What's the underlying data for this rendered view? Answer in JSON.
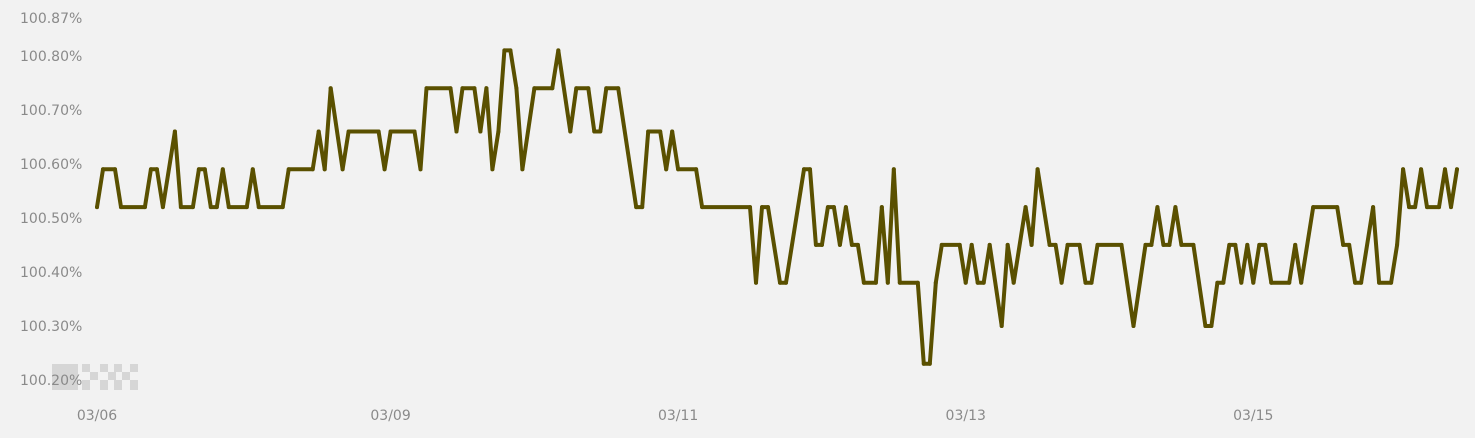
{
  "chart_data": {
    "type": "line",
    "title": "",
    "xlabel": "",
    "ylabel": "",
    "ylim": [
      100.2,
      100.87
    ],
    "grid": false,
    "line_color": "#5a5000",
    "background": "#f2f2f2",
    "y_ticks": [
      {
        "value": 100.87,
        "label": "100.87%"
      },
      {
        "value": 100.8,
        "label": "100.80%"
      },
      {
        "value": 100.7,
        "label": "100.70%"
      },
      {
        "value": 100.6,
        "label": "100.60%"
      },
      {
        "value": 100.5,
        "label": "100.50%"
      },
      {
        "value": 100.4,
        "label": "100.40%"
      },
      {
        "value": 100.3,
        "label": "100.30%"
      },
      {
        "value": 100.2,
        "label": "100.20%"
      }
    ],
    "x_ticks": [
      {
        "index": 0,
        "label": "03/06"
      },
      {
        "index": 49,
        "label": "03/09"
      },
      {
        "index": 97,
        "label": "03/11"
      },
      {
        "index": 145,
        "label": "03/13"
      },
      {
        "index": 193,
        "label": "03/15"
      }
    ],
    "x_range": [
      0,
      227
    ],
    "series": [
      {
        "points": [
          [
            0,
            100.52
          ],
          [
            1,
            100.59
          ],
          [
            3,
            100.59
          ],
          [
            4,
            100.52
          ],
          [
            8,
            100.52
          ],
          [
            9,
            100.59
          ],
          [
            10,
            100.59
          ],
          [
            11,
            100.52
          ],
          [
            13,
            100.66
          ],
          [
            14,
            100.52
          ],
          [
            16,
            100.52
          ],
          [
            17,
            100.59
          ],
          [
            18,
            100.59
          ],
          [
            19,
            100.52
          ],
          [
            20,
            100.52
          ],
          [
            21,
            100.59
          ],
          [
            22,
            100.52
          ],
          [
            25,
            100.52
          ],
          [
            26,
            100.59
          ],
          [
            27,
            100.52
          ],
          [
            31,
            100.52
          ],
          [
            32,
            100.59
          ],
          [
            36,
            100.59
          ],
          [
            37,
            100.66
          ],
          [
            38,
            100.59
          ],
          [
            39,
            100.74
          ],
          [
            41,
            100.59
          ],
          [
            42,
            100.66
          ],
          [
            47,
            100.66
          ],
          [
            48,
            100.59
          ],
          [
            49,
            100.66
          ],
          [
            53,
            100.66
          ],
          [
            54,
            100.59
          ],
          [
            55,
            100.74
          ],
          [
            59,
            100.74
          ],
          [
            60,
            100.66
          ],
          [
            61,
            100.74
          ],
          [
            63,
            100.74
          ],
          [
            64,
            100.66
          ],
          [
            65,
            100.74
          ],
          [
            66,
            100.59
          ],
          [
            67,
            100.66
          ],
          [
            68,
            100.81
          ],
          [
            69,
            100.81
          ],
          [
            70,
            100.74
          ],
          [
            71,
            100.59
          ],
          [
            73,
            100.74
          ],
          [
            76,
            100.74
          ],
          [
            77,
            100.81
          ],
          [
            79,
            100.66
          ],
          [
            80,
            100.74
          ],
          [
            82,
            100.74
          ],
          [
            83,
            100.66
          ],
          [
            84,
            100.66
          ],
          [
            85,
            100.74
          ],
          [
            87,
            100.74
          ],
          [
            90,
            100.52
          ],
          [
            91,
            100.52
          ],
          [
            92,
            100.66
          ],
          [
            94,
            100.66
          ],
          [
            95,
            100.59
          ],
          [
            96,
            100.66
          ],
          [
            97,
            100.59
          ],
          [
            100,
            100.59
          ],
          [
            101,
            100.52
          ],
          [
            109,
            100.52
          ],
          [
            110,
            100.38
          ],
          [
            111,
            100.52
          ],
          [
            112,
            100.52
          ],
          [
            114,
            100.38
          ],
          [
            115,
            100.38
          ],
          [
            118,
            100.59
          ],
          [
            119,
            100.59
          ],
          [
            120,
            100.45
          ],
          [
            121,
            100.45
          ],
          [
            122,
            100.52
          ],
          [
            123,
            100.52
          ],
          [
            124,
            100.45
          ],
          [
            125,
            100.52
          ],
          [
            126,
            100.45
          ],
          [
            127,
            100.45
          ],
          [
            128,
            100.38
          ],
          [
            130,
            100.38
          ],
          [
            131,
            100.52
          ],
          [
            132,
            100.38
          ],
          [
            133,
            100.59
          ],
          [
            134,
            100.38
          ],
          [
            137,
            100.38
          ],
          [
            138,
            100.23
          ],
          [
            139,
            100.23
          ],
          [
            140,
            100.38
          ],
          [
            141,
            100.45
          ],
          [
            144,
            100.45
          ],
          [
            145,
            100.38
          ],
          [
            146,
            100.45
          ],
          [
            147,
            100.38
          ],
          [
            148,
            100.38
          ],
          [
            149,
            100.45
          ],
          [
            151,
            100.3
          ],
          [
            152,
            100.45
          ],
          [
            153,
            100.38
          ],
          [
            155,
            100.52
          ],
          [
            156,
            100.45
          ],
          [
            157,
            100.59
          ],
          [
            159,
            100.45
          ],
          [
            160,
            100.45
          ],
          [
            161,
            100.38
          ],
          [
            162,
            100.45
          ],
          [
            164,
            100.45
          ],
          [
            165,
            100.38
          ],
          [
            166,
            100.38
          ],
          [
            167,
            100.45
          ],
          [
            171,
            100.45
          ],
          [
            173,
            100.3
          ],
          [
            175,
            100.45
          ],
          [
            176,
            100.45
          ],
          [
            177,
            100.52
          ],
          [
            178,
            100.45
          ],
          [
            179,
            100.45
          ],
          [
            180,
            100.52
          ],
          [
            181,
            100.45
          ],
          [
            183,
            100.45
          ],
          [
            185,
            100.3
          ],
          [
            186,
            100.3
          ],
          [
            187,
            100.38
          ],
          [
            188,
            100.38
          ],
          [
            189,
            100.45
          ],
          [
            190,
            100.45
          ],
          [
            191,
            100.38
          ],
          [
            192,
            100.45
          ],
          [
            193,
            100.38
          ],
          [
            194,
            100.45
          ],
          [
            195,
            100.45
          ],
          [
            196,
            100.38
          ],
          [
            199,
            100.38
          ],
          [
            200,
            100.45
          ],
          [
            201,
            100.38
          ],
          [
            203,
            100.52
          ],
          [
            207,
            100.52
          ],
          [
            208,
            100.45
          ],
          [
            209,
            100.45
          ],
          [
            210,
            100.38
          ],
          [
            211,
            100.38
          ],
          [
            213,
            100.52
          ],
          [
            214,
            100.38
          ],
          [
            216,
            100.38
          ],
          [
            217,
            100.45
          ],
          [
            218,
            100.59
          ],
          [
            219,
            100.52
          ],
          [
            220,
            100.52
          ],
          [
            221,
            100.59
          ],
          [
            222,
            100.52
          ],
          [
            224,
            100.52
          ],
          [
            225,
            100.59
          ],
          [
            226,
            100.52
          ],
          [
            227,
            100.59
          ]
        ]
      }
    ]
  }
}
